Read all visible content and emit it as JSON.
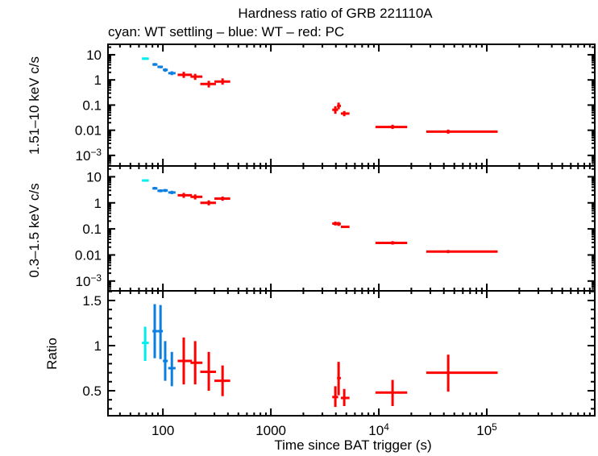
{
  "chart_data": {
    "type": "scatter",
    "title": "Hardness ratio of GRB 221110A",
    "subtitle": "cyan: WT settling – blue: WT – red: PC",
    "xlabel": "Time since BAT trigger (s)",
    "xscale": "log",
    "xlim": [
      31,
      1000000
    ],
    "x_ticks": [
      {
        "value": 100,
        "label": "100"
      },
      {
        "value": 1000,
        "label": "1000"
      },
      {
        "value": 10000,
        "label": "10",
        "sup": "4"
      },
      {
        "value": 100000,
        "label": "10",
        "sup": "5"
      }
    ],
    "colors": {
      "wt_settling": "#00eeee",
      "wt": "#0a7fe0",
      "pc": "#ff0000",
      "frame": "#000000"
    },
    "panels": [
      {
        "id": "hard",
        "ylabel": "1.51–10 keV c/s",
        "yscale": "log",
        "ylim": [
          0.00038,
          26
        ],
        "y_ticks": [
          {
            "value": 10,
            "label": "10"
          },
          {
            "value": 1,
            "label": "1"
          },
          {
            "value": 0.1,
            "label": "0.1"
          },
          {
            "value": 0.01,
            "label": "0.01"
          },
          {
            "value": 0.001,
            "label": "10",
            "sup": "−3"
          }
        ],
        "points": [
          {
            "mode": "wt_settling",
            "x": 68.5,
            "xlo": 64,
            "xhi": 74,
            "y": 7.0,
            "ylo": 6.3,
            "yhi": 7.8
          },
          {
            "mode": "wt",
            "x": 84,
            "xlo": 80,
            "xhi": 89,
            "y": 4.1,
            "ylo": 3.6,
            "yhi": 4.7
          },
          {
            "mode": "wt",
            "x": 95,
            "xlo": 89,
            "xhi": 100,
            "y": 3.3,
            "ylo": 2.9,
            "yhi": 3.7
          },
          {
            "mode": "wt",
            "x": 105,
            "xlo": 100,
            "xhi": 111,
            "y": 2.5,
            "ylo": 2.1,
            "yhi": 2.9
          },
          {
            "mode": "wt",
            "x": 121,
            "xlo": 112,
            "xhi": 131,
            "y": 1.85,
            "ylo": 1.55,
            "yhi": 2.2
          },
          {
            "mode": "pc",
            "x": 156,
            "xlo": 137,
            "xhi": 186,
            "y": 1.6,
            "ylo": 1.2,
            "yhi": 2.1
          },
          {
            "mode": "pc",
            "x": 199,
            "xlo": 180,
            "xhi": 232,
            "y": 1.35,
            "ylo": 1.0,
            "yhi": 1.75
          },
          {
            "mode": "pc",
            "x": 266,
            "xlo": 222,
            "xhi": 310,
            "y": 0.69,
            "ylo": 0.5,
            "yhi": 0.92
          },
          {
            "mode": "pc",
            "x": 357,
            "xlo": 300,
            "xhi": 420,
            "y": 0.86,
            "ylo": 0.65,
            "yhi": 1.15
          },
          {
            "mode": "pc",
            "x": 3955,
            "xlo": 3700,
            "xhi": 4200,
            "y": 0.065,
            "ylo": 0.045,
            "yhi": 0.09
          },
          {
            "mode": "pc",
            "x": 4240,
            "xlo": 4100,
            "xhi": 4450,
            "y": 0.093,
            "ylo": 0.068,
            "yhi": 0.125
          },
          {
            "mode": "pc",
            "x": 4780,
            "xlo": 4450,
            "xhi": 5350,
            "y": 0.046,
            "ylo": 0.036,
            "yhi": 0.058
          },
          {
            "mode": "pc",
            "x": 13400,
            "xlo": 9300,
            "xhi": 18300,
            "y": 0.0135,
            "ylo": 0.0112,
            "yhi": 0.0165
          },
          {
            "mode": "pc",
            "x": 43900,
            "xlo": 27500,
            "xhi": 126000,
            "y": 0.0088,
            "ylo": 0.0073,
            "yhi": 0.0106
          }
        ]
      },
      {
        "id": "soft",
        "ylabel": "0.3–1.5 keV c/s",
        "yscale": "log",
        "ylim": [
          0.00042,
          26
        ],
        "y_ticks": [
          {
            "value": 10,
            "label": "10"
          },
          {
            "value": 1,
            "label": "1"
          },
          {
            "value": 0.1,
            "label": "0.1"
          },
          {
            "value": 0.01,
            "label": "0.01"
          },
          {
            "value": 0.001,
            "label": "10",
            "sup": "−3"
          }
        ],
        "points": [
          {
            "mode": "wt_settling",
            "x": 68.5,
            "xlo": 64,
            "xhi": 74,
            "y": 7.2,
            "ylo": 6.5,
            "yhi": 8.0
          },
          {
            "mode": "wt",
            "x": 84,
            "xlo": 80,
            "xhi": 89,
            "y": 3.6,
            "ylo": 3.2,
            "yhi": 4.1
          },
          {
            "mode": "wt",
            "x": 95,
            "xlo": 89,
            "xhi": 100,
            "y": 2.9,
            "ylo": 2.55,
            "yhi": 3.3
          },
          {
            "mode": "wt",
            "x": 105,
            "xlo": 100,
            "xhi": 111,
            "y": 3.0,
            "ylo": 2.6,
            "yhi": 3.4
          },
          {
            "mode": "wt",
            "x": 121,
            "xlo": 112,
            "xhi": 131,
            "y": 2.5,
            "ylo": 2.15,
            "yhi": 2.9
          },
          {
            "mode": "pc",
            "x": 156,
            "xlo": 137,
            "xhi": 186,
            "y": 1.95,
            "ylo": 1.55,
            "yhi": 2.4
          },
          {
            "mode": "pc",
            "x": 199,
            "xlo": 180,
            "xhi": 232,
            "y": 1.7,
            "ylo": 1.35,
            "yhi": 2.1
          },
          {
            "mode": "pc",
            "x": 266,
            "xlo": 222,
            "xhi": 310,
            "y": 1.0,
            "ylo": 0.8,
            "yhi": 1.25
          },
          {
            "mode": "pc",
            "x": 357,
            "xlo": 300,
            "xhi": 420,
            "y": 1.45,
            "ylo": 1.2,
            "yhi": 1.75
          },
          {
            "mode": "pc",
            "x": 3955,
            "xlo": 3700,
            "xhi": 4200,
            "y": 0.16,
            "ylo": 0.135,
            "yhi": 0.19
          },
          {
            "mode": "pc",
            "x": 4240,
            "xlo": 4100,
            "xhi": 4450,
            "y": 0.155,
            "ylo": 0.13,
            "yhi": 0.185
          },
          {
            "mode": "pc",
            "x": 4780,
            "xlo": 4450,
            "xhi": 5350,
            "y": 0.12,
            "ylo": 0.108,
            "yhi": 0.133
          },
          {
            "mode": "pc",
            "x": 13400,
            "xlo": 9300,
            "xhi": 18300,
            "y": 0.029,
            "ylo": 0.025,
            "yhi": 0.034
          },
          {
            "mode": "pc",
            "x": 43900,
            "xlo": 27500,
            "xhi": 126000,
            "y": 0.0135,
            "ylo": 0.0118,
            "yhi": 0.0155
          }
        ]
      },
      {
        "id": "ratio",
        "ylabel": "Ratio",
        "yscale": "linear",
        "ylim": [
          0.223,
          1.607
        ],
        "y_ticks": [
          {
            "value": 1.5,
            "label": "1.5"
          },
          {
            "value": 1,
            "label": "1"
          },
          {
            "value": 0.5,
            "label": "0.5"
          }
        ],
        "y_minor_step": 0.1,
        "points": [
          {
            "mode": "wt_settling",
            "x": 68.5,
            "xlo": 64,
            "xhi": 74,
            "y": 1.03,
            "ylo": 0.83,
            "yhi": 1.21
          },
          {
            "mode": "wt",
            "x": 84,
            "xlo": 80,
            "xhi": 89,
            "y": 1.16,
            "ylo": 0.86,
            "yhi": 1.46
          },
          {
            "mode": "wt",
            "x": 95,
            "xlo": 89,
            "xhi": 100,
            "y": 1.16,
            "ylo": 0.85,
            "yhi": 1.45
          },
          {
            "mode": "wt",
            "x": 105,
            "xlo": 100,
            "xhi": 111,
            "y": 0.83,
            "ylo": 0.61,
            "yhi": 1.05
          },
          {
            "mode": "wt",
            "x": 121,
            "xlo": 112,
            "xhi": 131,
            "y": 0.75,
            "ylo": 0.55,
            "yhi": 0.93
          },
          {
            "mode": "pc",
            "x": 156,
            "xlo": 137,
            "xhi": 186,
            "y": 0.83,
            "ylo": 0.57,
            "yhi": 1.09
          },
          {
            "mode": "pc",
            "x": 199,
            "xlo": 180,
            "xhi": 232,
            "y": 0.81,
            "ylo": 0.57,
            "yhi": 1.05
          },
          {
            "mode": "pc",
            "x": 266,
            "xlo": 222,
            "xhi": 310,
            "y": 0.71,
            "ylo": 0.5,
            "yhi": 0.93
          },
          {
            "mode": "pc",
            "x": 357,
            "xlo": 300,
            "xhi": 420,
            "y": 0.61,
            "ylo": 0.44,
            "yhi": 0.78
          },
          {
            "mode": "pc",
            "x": 3955,
            "xlo": 3700,
            "xhi": 4200,
            "y": 0.43,
            "ylo": 0.32,
            "yhi": 0.55
          },
          {
            "mode": "pc",
            "x": 4240,
            "xlo": 4100,
            "xhi": 4450,
            "y": 0.64,
            "ylo": 0.45,
            "yhi": 0.82
          },
          {
            "mode": "pc",
            "x": 4780,
            "xlo": 4450,
            "xhi": 5350,
            "y": 0.42,
            "ylo": 0.33,
            "yhi": 0.52
          },
          {
            "mode": "pc",
            "x": 13400,
            "xlo": 9300,
            "xhi": 18300,
            "y": 0.48,
            "ylo": 0.33,
            "yhi": 0.62
          },
          {
            "mode": "pc",
            "x": 43900,
            "xlo": 27500,
            "xhi": 126000,
            "y": 0.7,
            "ylo": 0.49,
            "yhi": 0.9
          }
        ]
      }
    ]
  }
}
